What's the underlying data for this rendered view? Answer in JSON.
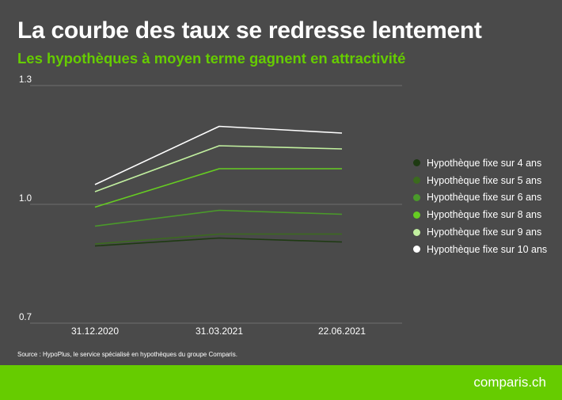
{
  "chart_data": {
    "type": "line",
    "title": "La courbe des taux se redresse lentement",
    "subtitle": "Les hypothèques à moyen terme gagnent en attractivité",
    "categories": [
      "31.12.2020",
      "31.03.2021",
      "22.06.2021"
    ],
    "y_ticks": [
      "1.3",
      "1.0",
      "0.7"
    ],
    "ylim": [
      0.7,
      1.3
    ],
    "grid": true,
    "legend_position": "right",
    "series": [
      {
        "name": "Hypothèque fixe sur 4 ans",
        "color": "#1e3a12",
        "values": [
          0.895,
          0.915,
          0.905
        ]
      },
      {
        "name": "Hypothèque fixe sur 5 ans",
        "color": "#3b6b1e",
        "values": [
          0.9,
          0.925,
          0.925
        ]
      },
      {
        "name": "Hypothèque fixe sur 6 ans",
        "color": "#4a9a2a",
        "values": [
          0.945,
          0.985,
          0.975
        ]
      },
      {
        "name": "Hypothèque fixe sur 8 ans",
        "color": "#66cc22",
        "values": [
          0.993,
          1.09,
          1.09
        ]
      },
      {
        "name": "Hypothèque fixe sur 9 ans",
        "color": "#c2f0a0",
        "values": [
          1.032,
          1.148,
          1.14
        ]
      },
      {
        "name": "Hypothèque fixe sur 10 ans",
        "color": "#ffffff",
        "values": [
          1.05,
          1.197,
          1.18
        ]
      }
    ]
  },
  "source_note": "Source : HypoPlus, le service spécialisé en hypothèques du groupe Comparis.",
  "brand": "comparis.ch"
}
